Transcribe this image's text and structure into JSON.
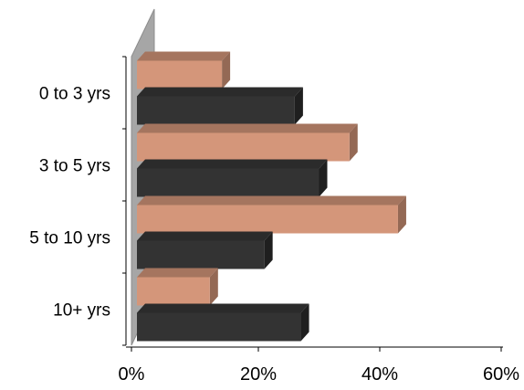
{
  "chart_data": {
    "type": "bar",
    "orientation": "horizontal",
    "style": "3d",
    "categories": [
      "0 to 3 yrs",
      "3 to 5 yrs",
      "5 to 10 yrs",
      "10+ yrs"
    ],
    "series": [
      {
        "values": [
          14,
          35,
          43,
          12
        ],
        "color": "#d4967a"
      },
      {
        "values": [
          26,
          30,
          21,
          27
        ],
        "color": "#333333"
      }
    ],
    "xticks": [
      "0%",
      "20%",
      "40%",
      "60%"
    ],
    "xlim": [
      0,
      60
    ],
    "grid": false,
    "legend": false,
    "title": "",
    "xlabel": "",
    "ylabel": ""
  }
}
